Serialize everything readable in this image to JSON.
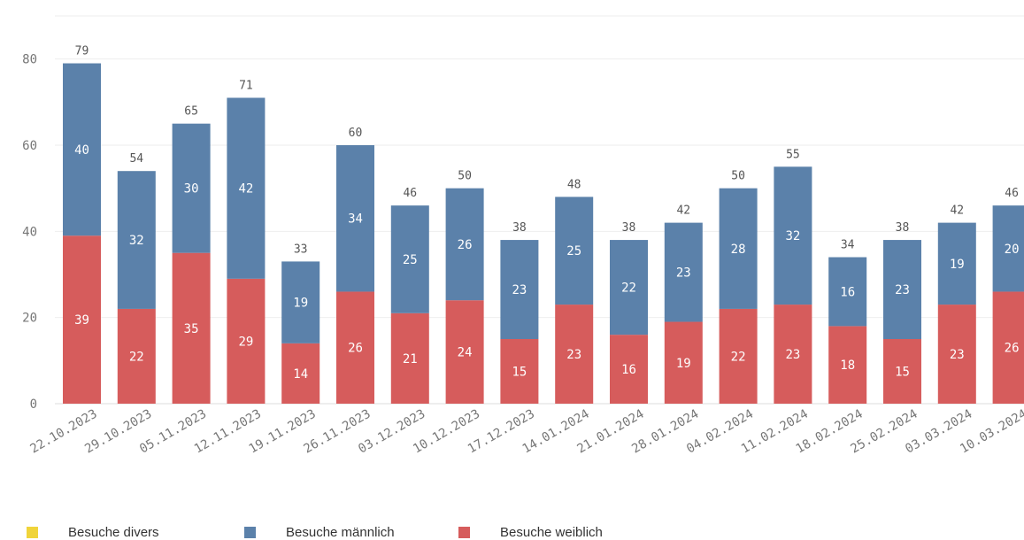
{
  "chart_data": {
    "type": "bar",
    "stacked": true,
    "title": "",
    "xlabel": "",
    "ylabel": "",
    "ylim": [
      0,
      90
    ],
    "yticks": [
      0,
      20,
      40,
      60,
      80
    ],
    "grid": true,
    "legend_position": "bottom",
    "categories": [
      "22.10.2023",
      "29.10.2023",
      "05.11.2023",
      "12.11.2023",
      "19.11.2023",
      "26.11.2023",
      "03.12.2023",
      "10.12.2023",
      "17.12.2023",
      "14.01.2024",
      "21.01.2024",
      "28.01.2024",
      "04.02.2024",
      "11.02.2024",
      "18.02.2024",
      "25.02.2024",
      "03.03.2024",
      "10.03.2024"
    ],
    "series": [
      {
        "name": "Besuche weiblich",
        "color": "#d65c5c",
        "values": [
          39,
          22,
          35,
          29,
          14,
          26,
          21,
          24,
          15,
          23,
          16,
          19,
          22,
          23,
          18,
          15,
          23,
          26
        ]
      },
      {
        "name": "Besuche männlich",
        "color": "#5b81aa",
        "values": [
          40,
          32,
          30,
          42,
          19,
          34,
          25,
          26,
          23,
          25,
          22,
          23,
          28,
          32,
          16,
          23,
          19,
          20
        ]
      }
    ],
    "totals": [
      79,
      54,
      65,
      71,
      33,
      60,
      46,
      50,
      38,
      48,
      38,
      42,
      50,
      55,
      34,
      38,
      42,
      46
    ]
  },
  "legend": [
    {
      "name": "Besuche divers",
      "color": "#f0d43a"
    },
    {
      "name": "Besuche männlich",
      "color": "#5b81aa"
    },
    {
      "name": "Besuche weiblich",
      "color": "#d65c5c"
    }
  ]
}
